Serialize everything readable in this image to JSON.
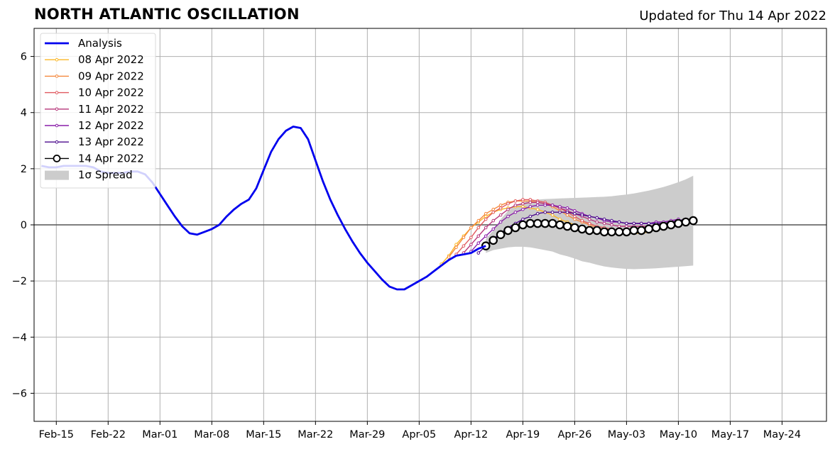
{
  "chart_data": {
    "type": "line",
    "title": "NORTH ATLANTIC OSCILLATION",
    "subtitle": "Updated for Thu 14 Apr 2022",
    "xlabel": "",
    "ylabel": "",
    "xlim": [
      "2022-02-12",
      "2022-05-30"
    ],
    "ylim": [
      -7,
      7
    ],
    "grid": true,
    "legend_position": "top-left",
    "x_ticks": [
      "2022-02-15",
      "2022-02-22",
      "2022-03-01",
      "2022-03-08",
      "2022-03-15",
      "2022-03-22",
      "2022-03-29",
      "2022-04-05",
      "2022-04-12",
      "2022-04-19",
      "2022-04-26",
      "2022-05-03",
      "2022-05-10",
      "2022-05-17",
      "2022-05-24"
    ],
    "x_tick_labels": [
      "Feb-15",
      "Feb-22",
      "Mar-01",
      "Mar-08",
      "Mar-15",
      "Mar-22",
      "Mar-29",
      "Apr-05",
      "Apr-12",
      "Apr-19",
      "Apr-26",
      "May-03",
      "May-10",
      "May-17",
      "May-24"
    ],
    "y_ticks": [
      -6,
      -4,
      -2,
      0,
      2,
      4,
      6
    ],
    "y_tick_labels": [
      "−6",
      "−4",
      "−2",
      "0",
      "2",
      "4",
      "6"
    ],
    "legend": {
      "analysis": "Analysis",
      "spread": "1σ Spread"
    },
    "series": [
      {
        "name": "Analysis",
        "color": "#0000ee",
        "x": [
          "2022-02-13",
          "2022-02-14",
          "2022-02-15",
          "2022-02-16",
          "2022-02-17",
          "2022-02-18",
          "2022-02-19",
          "2022-02-20",
          "2022-02-21",
          "2022-02-22",
          "2022-02-23",
          "2022-02-24",
          "2022-02-25",
          "2022-02-26",
          "2022-02-27",
          "2022-02-28",
          "2022-03-01",
          "2022-03-02",
          "2022-03-03",
          "2022-03-04",
          "2022-03-05",
          "2022-03-06",
          "2022-03-07",
          "2022-03-08",
          "2022-03-09",
          "2022-03-10",
          "2022-03-11",
          "2022-03-12",
          "2022-03-13",
          "2022-03-14",
          "2022-03-15",
          "2022-03-16",
          "2022-03-17",
          "2022-03-18",
          "2022-03-19",
          "2022-03-20",
          "2022-03-21",
          "2022-03-22",
          "2022-03-23",
          "2022-03-24",
          "2022-03-25",
          "2022-03-26",
          "2022-03-27",
          "2022-03-28",
          "2022-03-29",
          "2022-03-30",
          "2022-03-31",
          "2022-04-01",
          "2022-04-02",
          "2022-04-03",
          "2022-04-04",
          "2022-04-05",
          "2022-04-06",
          "2022-04-07",
          "2022-04-08",
          "2022-04-09",
          "2022-04-10",
          "2022-04-11",
          "2022-04-12",
          "2022-04-13",
          "2022-04-14"
        ],
        "values": [
          2.1,
          2.05,
          2.05,
          2.1,
          2.1,
          2.1,
          2.1,
          2.05,
          1.9,
          1.85,
          1.85,
          1.85,
          1.9,
          1.9,
          1.8,
          1.5,
          1.1,
          0.7,
          0.3,
          -0.05,
          -0.3,
          -0.35,
          -0.25,
          -0.15,
          0.0,
          0.3,
          0.55,
          0.75,
          0.9,
          1.3,
          1.95,
          2.6,
          3.05,
          3.35,
          3.5,
          3.45,
          3.05,
          2.3,
          1.55,
          0.9,
          0.35,
          -0.15,
          -0.6,
          -1.0,
          -1.35,
          -1.65,
          -1.95,
          -2.2,
          -2.3,
          -2.3,
          -2.15,
          -2.0,
          -1.85,
          -1.65,
          -1.45,
          -1.25,
          -1.1,
          -1.05,
          -1.0,
          -0.85,
          -0.75
        ]
      },
      {
        "name": "08 Apr 2022",
        "color": "#fbb726",
        "x_start": "2022-04-08",
        "values": [
          -1.4,
          -1.1,
          -0.7,
          -0.4,
          -0.1,
          0.1,
          0.3,
          0.45,
          0.55,
          0.6,
          0.65,
          0.65,
          0.6,
          0.55,
          0.45,
          0.35,
          0.2,
          0.1,
          0.0,
          -0.1,
          -0.15,
          -0.2,
          -0.25,
          -0.3,
          -0.3,
          -0.3,
          -0.3,
          -0.3,
          -0.25
        ]
      },
      {
        "name": "09 Apr 2022",
        "color": "#f5883c",
        "x_start": "2022-04-09",
        "values": [
          -1.15,
          -0.8,
          -0.45,
          -0.1,
          0.15,
          0.4,
          0.55,
          0.7,
          0.8,
          0.85,
          0.85,
          0.85,
          0.8,
          0.75,
          0.65,
          0.5,
          0.35,
          0.2,
          0.1,
          0.0,
          -0.1,
          -0.15,
          -0.2,
          -0.25,
          -0.25,
          -0.25,
          -0.2,
          -0.15,
          -0.1
        ]
      },
      {
        "name": "10 Apr 2022",
        "color": "#e0595f",
        "x_start": "2022-04-10",
        "values": [
          -1.05,
          -0.75,
          -0.45,
          -0.1,
          0.2,
          0.45,
          0.6,
          0.75,
          0.85,
          0.9,
          0.9,
          0.85,
          0.8,
          0.7,
          0.6,
          0.45,
          0.3,
          0.15,
          0.05,
          -0.05,
          -0.1,
          -0.15,
          -0.2,
          -0.2,
          -0.2,
          -0.15,
          -0.1,
          -0.05,
          0.0
        ]
      },
      {
        "name": "11 Apr 2022",
        "color": "#b6357a",
        "x_start": "2022-04-11",
        "values": [
          -1.0,
          -0.7,
          -0.4,
          -0.1,
          0.15,
          0.35,
          0.55,
          0.7,
          0.75,
          0.8,
          0.8,
          0.75,
          0.7,
          0.6,
          0.5,
          0.4,
          0.3,
          0.2,
          0.1,
          0.05,
          0.0,
          -0.05,
          -0.05,
          -0.05,
          -0.05,
          -0.05,
          0.0,
          0.05,
          0.1
        ]
      },
      {
        "name": "12 Apr 2022",
        "color": "#8a1ea8",
        "x_start": "2022-04-12",
        "values": [
          -0.95,
          -0.65,
          -0.4,
          -0.15,
          0.1,
          0.3,
          0.45,
          0.55,
          0.65,
          0.7,
          0.7,
          0.7,
          0.65,
          0.6,
          0.5,
          0.4,
          0.3,
          0.25,
          0.15,
          0.1,
          0.1,
          0.05,
          0.05,
          0.05,
          0.05,
          0.1,
          0.1,
          0.15,
          0.2
        ]
      },
      {
        "name": "13 Apr 2022",
        "color": "#4b0a8c",
        "x_start": "2022-04-13",
        "values": [
          -1.0,
          -0.75,
          -0.5,
          -0.3,
          -0.1,
          0.05,
          0.2,
          0.3,
          0.4,
          0.45,
          0.45,
          0.45,
          0.45,
          0.4,
          0.35,
          0.3,
          0.25,
          0.2,
          0.15,
          0.1,
          0.05,
          0.05,
          0.05,
          0.05,
          0.05,
          0.05,
          0.1,
          0.15,
          0.2
        ]
      },
      {
        "name": "14 Apr 2022",
        "color": "#000000",
        "x_start": "2022-04-14",
        "values": [
          -0.75,
          -0.55,
          -0.35,
          -0.2,
          -0.1,
          0.0,
          0.05,
          0.05,
          0.05,
          0.05,
          0.0,
          -0.05,
          -0.1,
          -0.15,
          -0.2,
          -0.2,
          -0.25,
          -0.25,
          -0.25,
          -0.25,
          -0.2,
          -0.2,
          -0.15,
          -0.1,
          -0.05,
          0.0,
          0.05,
          0.1,
          0.15
        ]
      }
    ],
    "spread": {
      "name": "1σ Spread",
      "color": "#cccccc",
      "x_start": "2022-04-14",
      "lower": [
        -1.0,
        -0.9,
        -0.85,
        -0.8,
        -0.78,
        -0.78,
        -0.8,
        -0.85,
        -0.9,
        -0.95,
        -1.05,
        -1.12,
        -1.2,
        -1.3,
        -1.35,
        -1.42,
        -1.48,
        -1.52,
        -1.55,
        -1.57,
        -1.58,
        -1.57,
        -1.56,
        -1.55,
        -1.53,
        -1.51,
        -1.49,
        -1.47,
        -1.45
      ],
      "upper": [
        -0.5,
        -0.2,
        0.2,
        0.5,
        0.7,
        0.8,
        0.87,
        0.9,
        0.92,
        0.93,
        0.94,
        0.95,
        0.96,
        0.97,
        0.98,
        0.99,
        1.0,
        1.02,
        1.05,
        1.08,
        1.12,
        1.17,
        1.22,
        1.28,
        1.35,
        1.43,
        1.52,
        1.62,
        1.75
      ]
    }
  }
}
